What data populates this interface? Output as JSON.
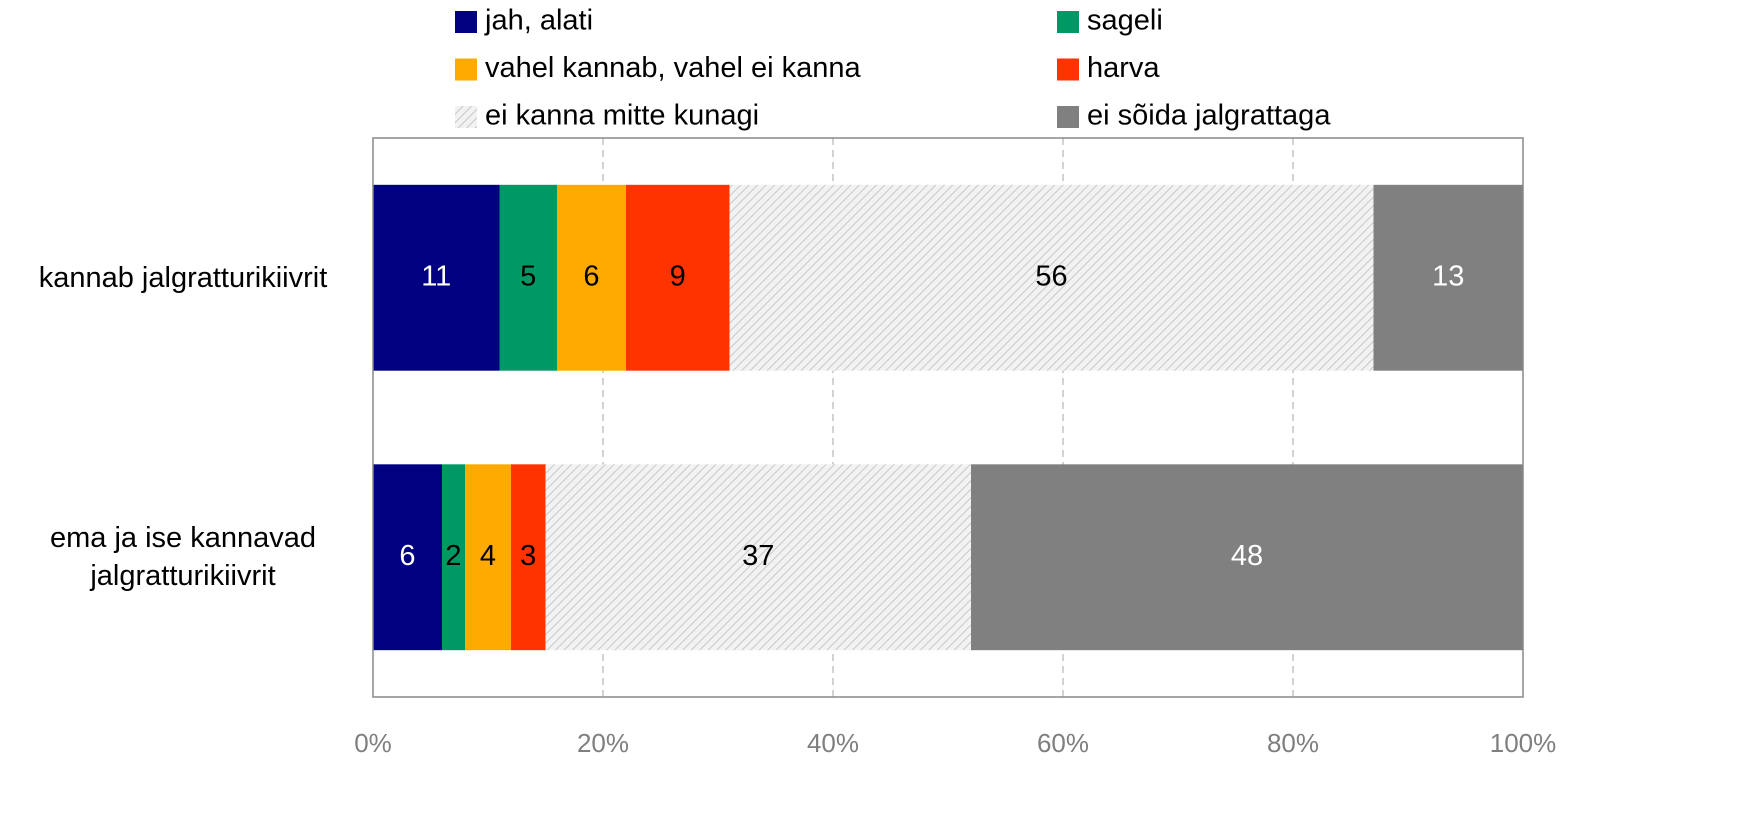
{
  "chart_data": {
    "type": "stacked_barh",
    "categories": [
      "kannab jalgratturikiivrit",
      "ema ja ise kannavad jalgratturikiivrit"
    ],
    "series": [
      {
        "name": "jah, alati",
        "color": "#000080",
        "values": [
          11,
          6
        ]
      },
      {
        "name": "sageli",
        "color": "#009966",
        "values": [
          5,
          2
        ]
      },
      {
        "name": "vahel kannab, vahel ei kanna",
        "color": "#ffaa00",
        "values": [
          6,
          4
        ]
      },
      {
        "name": "harva",
        "color": "#ff3300",
        "values": [
          9,
          3
        ]
      },
      {
        "name": "ei kanna mitte kunagi",
        "color": "#d9d9d9",
        "pattern": "hatch",
        "values": [
          56,
          37
        ]
      },
      {
        "name": "ei sõida jalgrattaga",
        "color": "#808080",
        "values": [
          13,
          48
        ]
      }
    ],
    "xlim": [
      0,
      100
    ],
    "xticks": [
      {
        "value": 0,
        "label": "0%"
      },
      {
        "value": 20,
        "label": "20%"
      },
      {
        "value": 40,
        "label": "40%"
      },
      {
        "value": 60,
        "label": "60%"
      },
      {
        "value": 80,
        "label": "80%"
      },
      {
        "value": 100,
        "label": "100%"
      }
    ],
    "grid": true,
    "legend": "top"
  }
}
